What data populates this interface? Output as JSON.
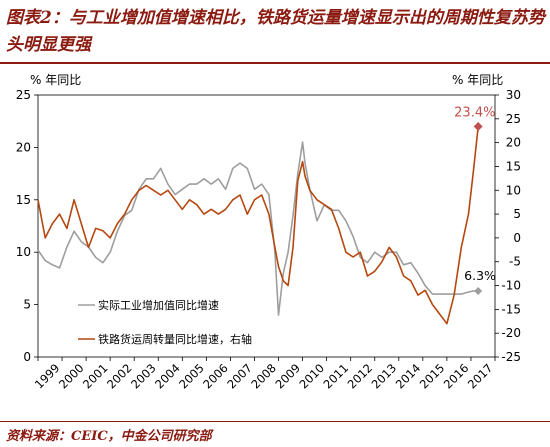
{
  "figure": {
    "title": "图表2：与工业增加值增速相比，铁路货运量增速显示出的周期性复苏势头明显更强",
    "source": "资料来源：CEIC，中金公司研究部"
  },
  "chart_data": {
    "type": "line",
    "left_axis": {
      "unit_label": "% 年同比",
      "ylim": [
        0,
        25
      ],
      "ticks": [
        "0",
        "5",
        "10",
        "15",
        "20",
        "25"
      ]
    },
    "right_axis": {
      "unit_label": "% 年同比",
      "ylim": [
        -25,
        30
      ],
      "ticks": [
        "-25",
        "-20",
        "-15",
        "-10",
        "-5",
        "0",
        "5",
        "10",
        "15",
        "20",
        "25",
        "30"
      ]
    },
    "x_axis": {
      "categories": [
        "1999",
        "2000",
        "2001",
        "2002",
        "2003",
        "2004",
        "2005",
        "2006",
        "2007",
        "2008",
        "2009",
        "2010",
        "2011",
        "2012",
        "2013",
        "2014",
        "2015",
        "2016",
        "2017"
      ]
    },
    "grid": false,
    "legend": "bottom-left",
    "colors": {
      "industrial": "#9E9E9E",
      "rail": "#B5470F",
      "end_marker": "#C0504D"
    },
    "series": [
      {
        "name": "实际工业增加值同比增速",
        "axis": "left",
        "color": "#9E9E9E",
        "end_label": "6.3%",
        "x": [
          1999.0,
          1999.3,
          1999.6,
          1999.9,
          2000.2,
          2000.5,
          2000.8,
          2001.1,
          2001.4,
          2001.7,
          2002.0,
          2002.3,
          2002.6,
          2002.9,
          2003.2,
          2003.5,
          2003.8,
          2004.1,
          2004.4,
          2004.7,
          2005.0,
          2005.3,
          2005.6,
          2005.9,
          2006.2,
          2006.5,
          2006.8,
          2007.1,
          2007.4,
          2007.7,
          2008.0,
          2008.3,
          2008.6,
          2008.85,
          2009.0,
          2009.2,
          2009.4,
          2009.6,
          2009.8,
          2010.0,
          2010.1,
          2010.3,
          2010.6,
          2010.9,
          2011.2,
          2011.5,
          2011.8,
          2012.1,
          2012.4,
          2012.7,
          2013.0,
          2013.3,
          2013.6,
          2013.9,
          2014.2,
          2014.5,
          2014.8,
          2015.1,
          2015.4,
          2015.7,
          2016.0,
          2016.3,
          2016.6,
          2016.9,
          2017.1,
          2017.3
        ],
        "values": [
          10.2,
          9.2,
          8.8,
          8.5,
          10.5,
          12.0,
          11.0,
          10.5,
          9.5,
          9.0,
          10.0,
          12.0,
          13.5,
          14.0,
          16.0,
          17.0,
          17.0,
          18.0,
          16.5,
          15.5,
          16.0,
          16.5,
          16.5,
          17.0,
          16.5,
          17.0,
          16.0,
          18.0,
          18.5,
          18.0,
          16.0,
          16.5,
          15.5,
          10.0,
          4.0,
          8.0,
          10.0,
          13.5,
          17.5,
          20.5,
          18.5,
          16.0,
          13.0,
          14.5,
          14.0,
          14.0,
          13.0,
          11.5,
          9.5,
          9.0,
          10.0,
          9.5,
          10.0,
          10.0,
          8.8,
          9.0,
          8.0,
          6.8,
          6.0,
          6.0,
          6.0,
          6.0,
          6.0,
          6.2,
          6.3,
          6.3
        ]
      },
      {
        "name": "铁路货运周转量同比增速，右轴",
        "axis": "right",
        "color": "#B5470F",
        "end_label": "23.4%",
        "x": [
          1999.0,
          1999.3,
          1999.6,
          1999.9,
          2000.2,
          2000.5,
          2000.8,
          2001.1,
          2001.4,
          2001.7,
          2002.0,
          2002.3,
          2002.6,
          2002.9,
          2003.2,
          2003.5,
          2003.8,
          2004.1,
          2004.4,
          2004.7,
          2005.0,
          2005.3,
          2005.6,
          2005.9,
          2006.2,
          2006.5,
          2006.8,
          2007.1,
          2007.4,
          2007.7,
          2008.0,
          2008.3,
          2008.6,
          2008.85,
          2009.0,
          2009.2,
          2009.4,
          2009.6,
          2009.8,
          2010.0,
          2010.1,
          2010.3,
          2010.6,
          2010.9,
          2011.2,
          2011.5,
          2011.8,
          2012.1,
          2012.4,
          2012.7,
          2013.0,
          2013.3,
          2013.6,
          2013.9,
          2014.2,
          2014.5,
          2014.8,
          2015.1,
          2015.4,
          2015.7,
          2016.0,
          2016.3,
          2016.6,
          2016.9,
          2017.1,
          2017.3
        ],
        "values": [
          8.0,
          0.0,
          3.0,
          5.0,
          2.0,
          8.0,
          3.0,
          -2.0,
          2.0,
          1.5,
          0.0,
          3.0,
          5.0,
          8.0,
          10.0,
          11.0,
          10.0,
          9.0,
          10.0,
          8.0,
          6.0,
          8.0,
          7.0,
          5.0,
          6.0,
          5.0,
          6.0,
          8.0,
          9.0,
          5.0,
          8.0,
          9.0,
          5.0,
          -2.0,
          -6.0,
          -9.0,
          -10.0,
          -2.0,
          12.0,
          16.0,
          13.0,
          10.0,
          8.0,
          7.0,
          6.0,
          2.0,
          -3.0,
          -4.0,
          -3.0,
          -8.0,
          -7.0,
          -5.0,
          -2.0,
          -4.0,
          -8.0,
          -9.0,
          -12.0,
          -11.0,
          -14.0,
          -16.0,
          -18.0,
          -12.0,
          -2.0,
          5.0,
          14.0,
          23.4
        ]
      }
    ]
  }
}
